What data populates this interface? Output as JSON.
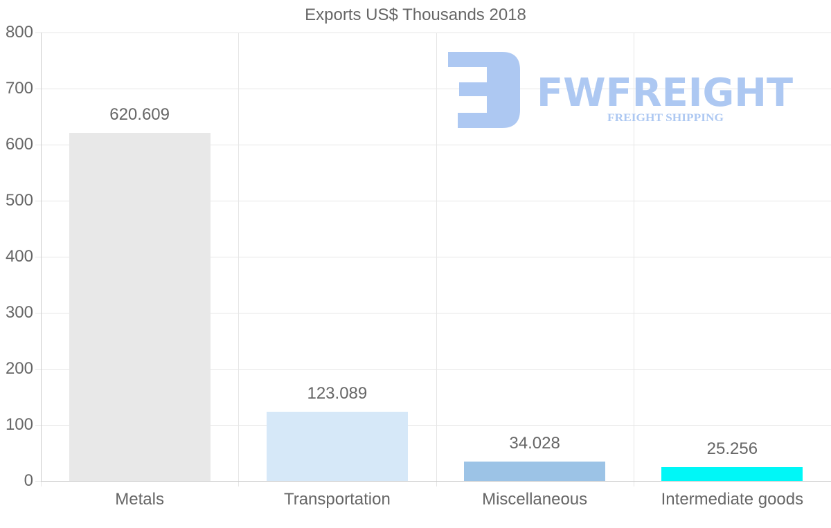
{
  "chart_data": {
    "type": "bar",
    "title": "Exports US$ Thousands 2018",
    "categories": [
      "Metals",
      "Transportation",
      "Miscellaneous",
      "Intermediate goods"
    ],
    "values": [
      620.609,
      123.089,
      34.028,
      25.256
    ],
    "value_labels": [
      "620.609",
      "123.089",
      "34.028",
      "25.256"
    ],
    "colors": [
      "#e8e8e8",
      "#d6e8f8",
      "#9cc3e6",
      "#00f7f7"
    ],
    "xlabel": "",
    "ylabel": "",
    "ylim": [
      0,
      800
    ],
    "yticks": [
      0,
      100,
      200,
      300,
      400,
      500,
      600,
      700,
      800
    ],
    "grid": true,
    "legend": "none"
  },
  "watermark": {
    "brand": "FWFREIGHT",
    "tagline": "FREIGHT SHIPPING",
    "color": "#adc8f2"
  }
}
